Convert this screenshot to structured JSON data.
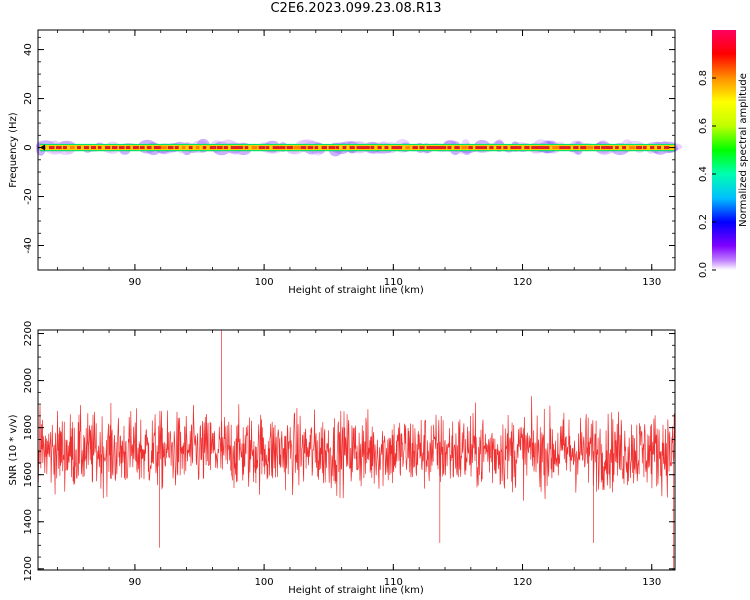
{
  "title": "C2E6.2023.099.23.08.R13",
  "colors": {
    "snr_line": "#f03030",
    "ridge": "#e02020",
    "background": "#ffffff"
  },
  "chart_data": [
    {
      "type": "heatmap",
      "name": "spectrogram",
      "xlabel": "Height of straight line (km)",
      "ylabel": "Frequency (Hz)",
      "xlim": [
        82.5,
        131.8
      ],
      "ylim": [
        -50,
        48
      ],
      "xticks": [
        90,
        100,
        110,
        120,
        130
      ],
      "yticks": [
        -40,
        -20,
        0,
        20,
        40
      ],
      "colorbar": {
        "label": "Normalized spectral amplitude",
        "range": [
          0,
          1
        ],
        "ticks": [
          0.0,
          0.2,
          0.4,
          0.6,
          0.8
        ],
        "colormap": "hsv"
      },
      "description_values": {
        "signal_frequency_hz": 0,
        "signal_half_width_hz": 1.5,
        "peak_amplitude": 1.0
      }
    },
    {
      "type": "line",
      "name": "snr",
      "xlabel": "Height of straight line (km)",
      "ylabel": "SNR (10 * v/v)",
      "xlim": [
        82.5,
        131.8
      ],
      "ylim": [
        1195,
        2215
      ],
      "xticks": [
        90,
        100,
        110,
        120,
        130
      ],
      "yticks": [
        1200,
        1400,
        1600,
        1800,
        2000,
        2200
      ],
      "series_summary": {
        "mean": 1700,
        "typical_min": 1450,
        "typical_max": 1950,
        "spikes": [
          {
            "x": 96.7,
            "y": 2215
          },
          {
            "x": 91.9,
            "y": 1290
          },
          {
            "x": 131.7,
            "y": 1200
          },
          {
            "x": 113.6,
            "y": 1310
          },
          {
            "x": 125.5,
            "y": 1310
          }
        ]
      }
    }
  ]
}
